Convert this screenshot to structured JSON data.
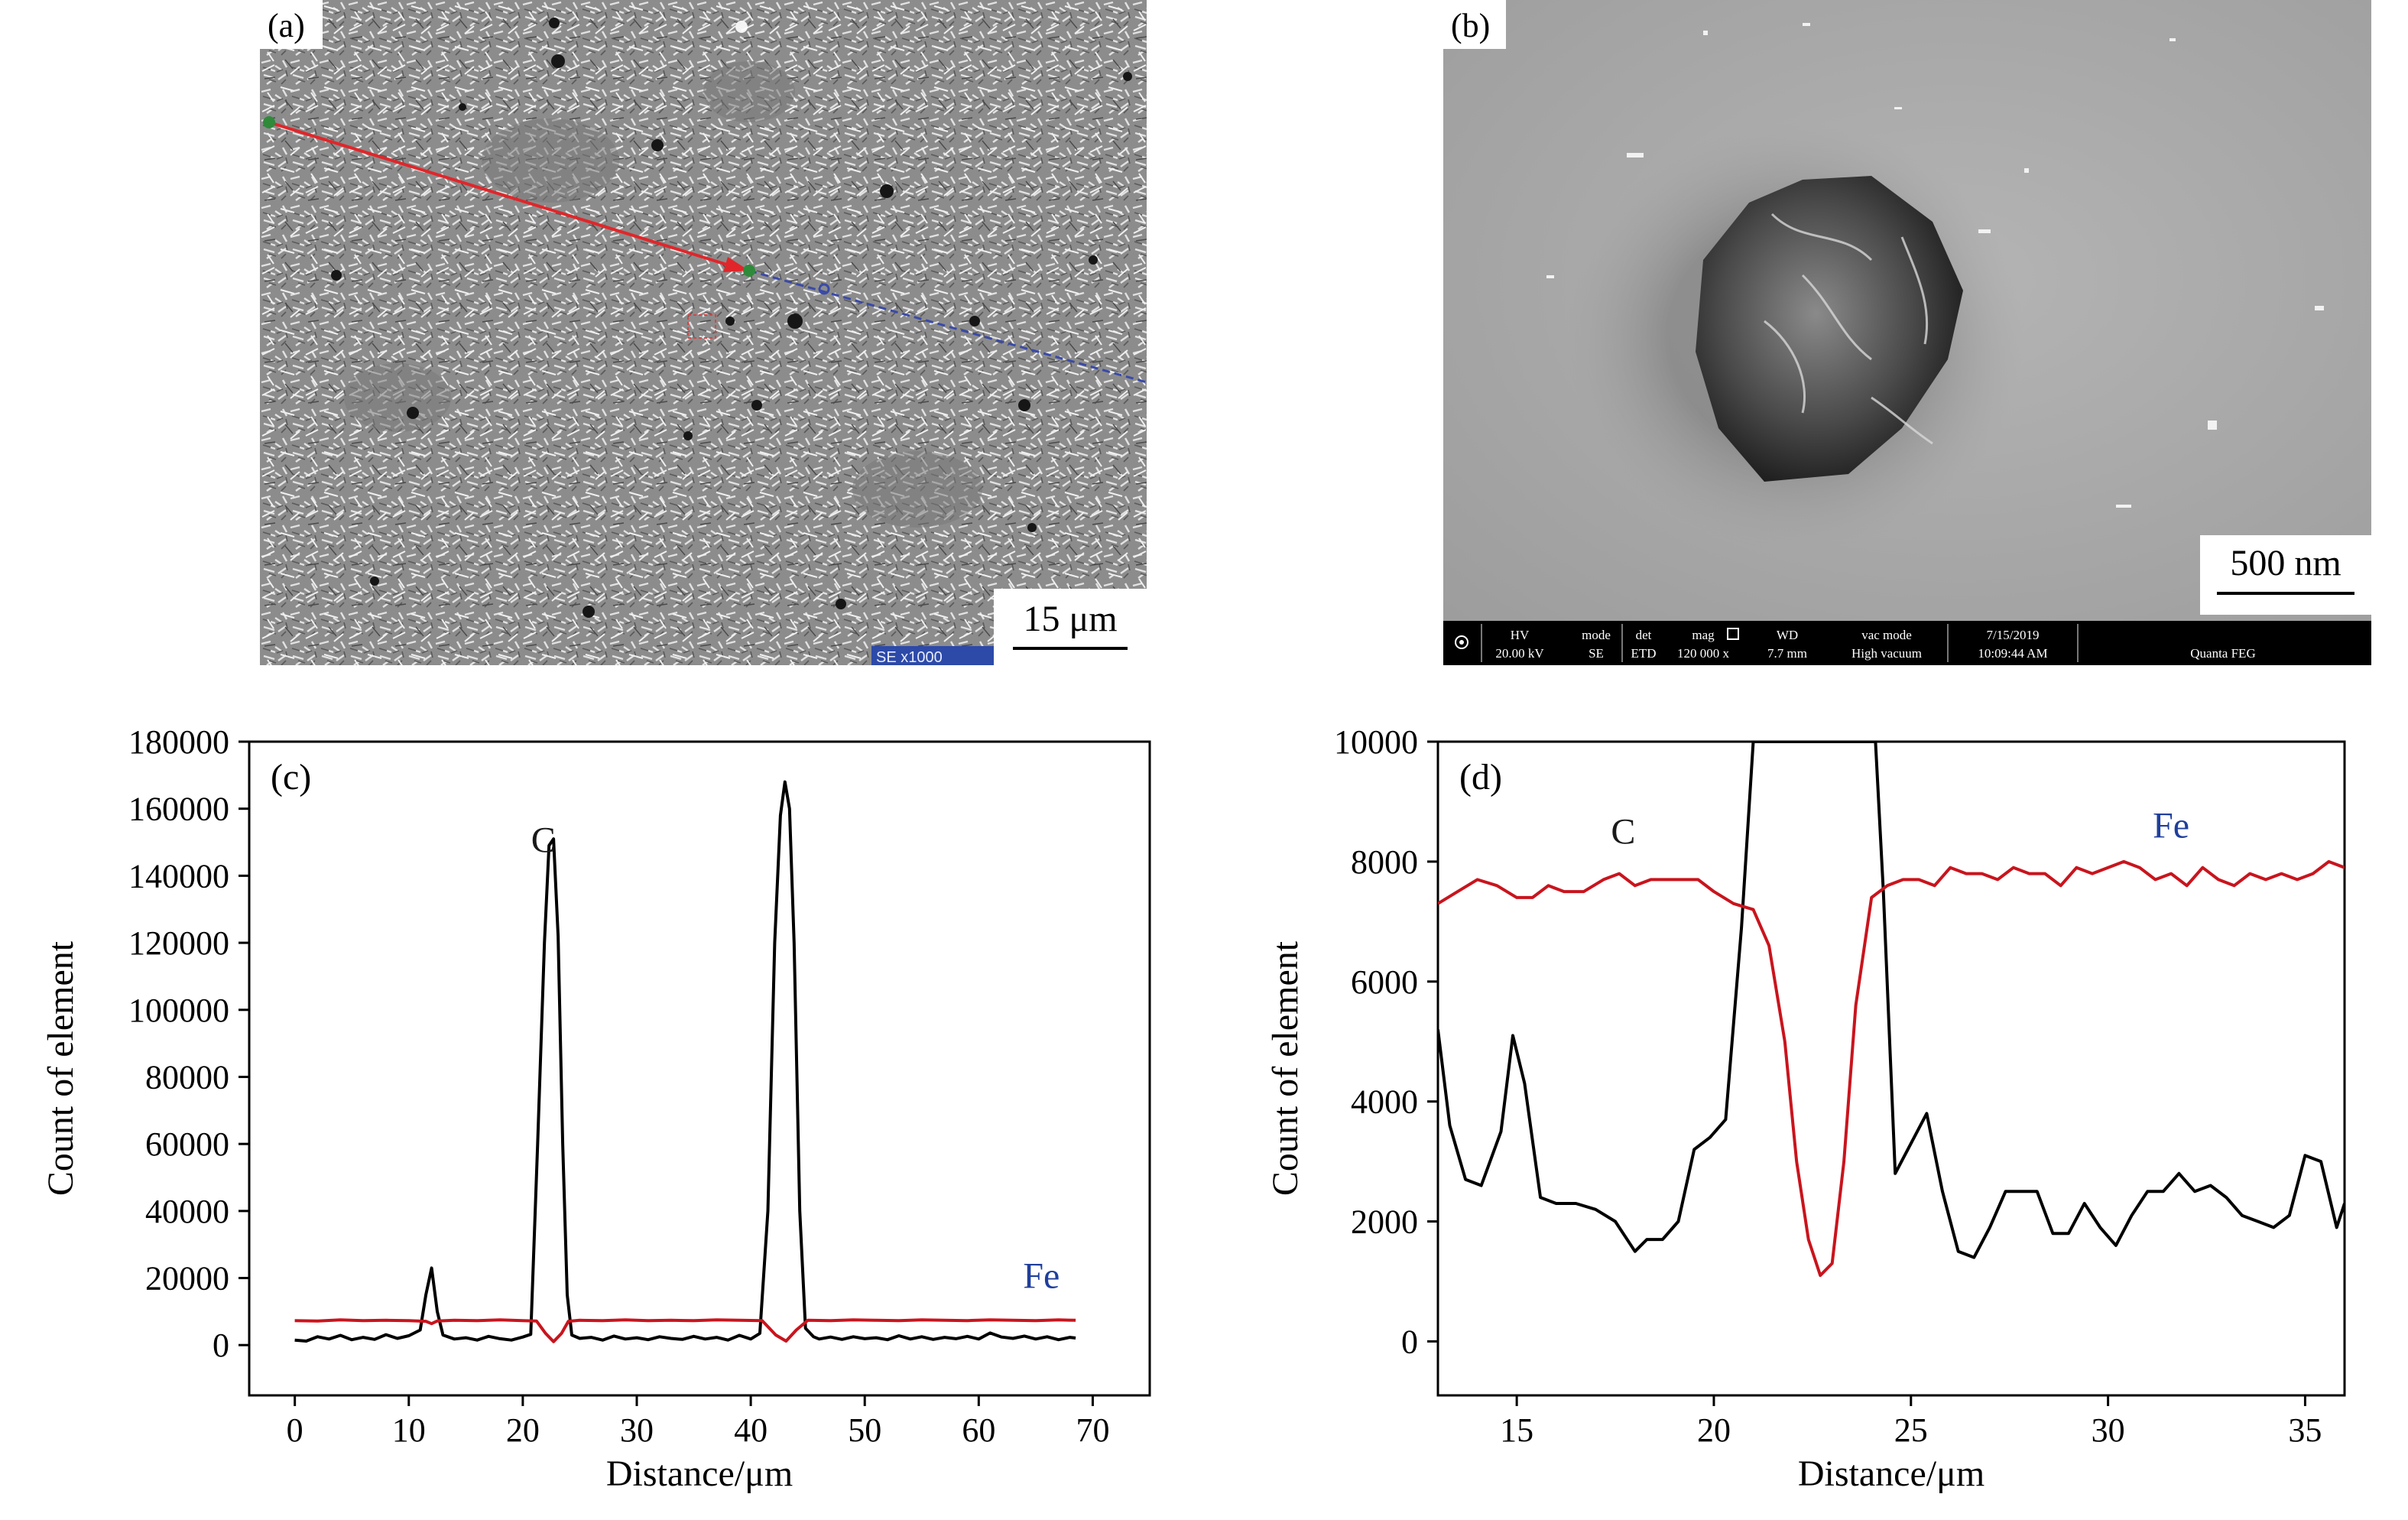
{
  "micrographs": {
    "a": {
      "panel_label": "(a)",
      "scale_bar_label": "15 μm",
      "info_tag": "SE  x1000"
    },
    "b": {
      "panel_label": "(b)",
      "scale_bar_label": "500 nm",
      "info_bar": {
        "hv_label": "HV",
        "hv_value": "20.00 kV",
        "mode_label": "mode",
        "mode_value": "SE",
        "det_label": "det",
        "det_value": "ETD",
        "mag_label": "mag",
        "mag_value": "120 000 x",
        "wd_label": "WD",
        "wd_value": "7.7 mm",
        "vac_label": "vac mode",
        "vac_value": "High vacuum",
        "date": "7/15/2019",
        "time": "10:09:44 AM",
        "instrument": "Quanta FEG"
      }
    }
  },
  "chart_data": [
    {
      "type": "line",
      "panel_label": "(c)",
      "xlabel": "Distance/μm",
      "ylabel": "Count of element",
      "xlim": [
        -4,
        75
      ],
      "ylim": [
        -15000,
        180000
      ],
      "xticks": [
        0,
        10,
        20,
        30,
        40,
        50,
        60,
        70
      ],
      "yticks": [
        0,
        20000,
        40000,
        60000,
        80000,
        100000,
        120000,
        140000,
        160000,
        180000
      ],
      "grid": false,
      "annotations": [
        {
          "text": "C",
          "x": 21.8,
          "y": 147000,
          "color": "#1a1a1a"
        },
        {
          "text": "Fe",
          "x": 65.5,
          "y": 17000,
          "color": "#1f3f9c"
        }
      ],
      "series": [
        {
          "name": "C",
          "color": "#000000",
          "x": [
            0,
            1,
            2,
            3,
            4,
            5,
            6,
            7,
            8,
            9,
            10,
            11,
            11.5,
            12,
            12.5,
            13,
            14,
            15,
            16,
            17,
            18,
            19,
            20,
            20.7,
            21.3,
            21.9,
            22.3,
            22.7,
            23.1,
            23.5,
            23.9,
            24.3,
            25,
            26,
            27,
            28,
            29,
            30,
            31,
            32,
            33,
            34,
            35,
            36,
            37,
            38,
            39,
            40,
            40.8,
            41.5,
            42.1,
            42.6,
            43,
            43.4,
            43.8,
            44.3,
            44.8,
            45.5,
            46,
            47,
            48,
            49,
            50,
            51,
            52,
            53,
            54,
            55,
            56,
            57,
            58,
            59,
            60,
            61,
            62,
            63,
            64,
            65,
            66,
            67,
            68,
            68.5
          ],
          "y": [
            1500,
            1200,
            2500,
            1800,
            2900,
            1600,
            2300,
            1700,
            3100,
            2000,
            2800,
            4500,
            15000,
            23000,
            10000,
            3000,
            1800,
            2200,
            1500,
            2600,
            1900,
            1500,
            2400,
            3200,
            60000,
            120000,
            149000,
            151000,
            122000,
            60000,
            15000,
            3000,
            2000,
            2300,
            1500,
            2700,
            1800,
            2200,
            1600,
            2500,
            2000,
            1700,
            2600,
            1800,
            2300,
            1500,
            2900,
            1800,
            3500,
            40000,
            120000,
            158000,
            168000,
            160000,
            120000,
            40000,
            5000,
            2500,
            1800,
            2400,
            1700,
            2500,
            1900,
            2200,
            1600,
            2800,
            1800,
            2500,
            1700,
            2300,
            1900,
            2600,
            1800,
            3600,
            2400,
            2000,
            2700,
            1800,
            2500,
            1600,
            2300,
            2100
          ]
        },
        {
          "name": "Fe",
          "color": "#c9141d",
          "x": [
            0,
            2,
            4,
            6,
            8,
            10,
            11.5,
            12,
            12.5,
            14,
            16,
            18,
            20,
            21.2,
            22,
            22.7,
            23.4,
            24,
            25,
            27,
            29,
            31,
            33,
            35,
            37,
            39,
            41,
            42.2,
            43.1,
            44,
            45,
            47,
            49,
            51,
            53,
            55,
            57,
            59,
            61,
            63,
            65,
            67,
            68.5
          ],
          "y": [
            7300,
            7200,
            7500,
            7300,
            7400,
            7300,
            7100,
            6400,
            7200,
            7400,
            7300,
            7500,
            7300,
            7200,
            3500,
            1000,
            3500,
            7100,
            7400,
            7300,
            7500,
            7300,
            7400,
            7300,
            7500,
            7400,
            7300,
            3000,
            1200,
            4500,
            7400,
            7300,
            7500,
            7400,
            7300,
            7500,
            7400,
            7300,
            7500,
            7400,
            7300,
            7500,
            7400
          ]
        }
      ]
    },
    {
      "type": "line",
      "panel_label": "(d)",
      "xlabel": "Distance/μm",
      "ylabel": "Count of element",
      "xlim": [
        13,
        36
      ],
      "ylim": [
        -900,
        10000
      ],
      "xticks": [
        15,
        20,
        25,
        30,
        35
      ],
      "yticks": [
        0,
        2000,
        4000,
        6000,
        8000,
        10000
      ],
      "grid": false,
      "annotations": [
        {
          "text": "C",
          "x": 17.7,
          "y": 8300,
          "color": "#1a1a1a"
        },
        {
          "text": "Fe",
          "x": 31.6,
          "y": 8400,
          "color": "#1f3f9c"
        }
      ],
      "series": [
        {
          "name": "C",
          "color": "#000000",
          "x": [
            13,
            13.3,
            13.7,
            14.1,
            14.6,
            14.9,
            15.2,
            15.6,
            16,
            16.5,
            17,
            17.5,
            18,
            18.3,
            18.7,
            19.1,
            19.5,
            19.9,
            20.3,
            20.7,
            21,
            21.2,
            24.1,
            24.3,
            24.6,
            25,
            25.4,
            25.8,
            26.2,
            26.6,
            27,
            27.4,
            27.8,
            28.2,
            28.6,
            29,
            29.4,
            29.8,
            30.2,
            30.6,
            31,
            31.4,
            31.8,
            32.2,
            32.6,
            33,
            33.4,
            33.8,
            34.2,
            34.6,
            35,
            35.4,
            35.8,
            36
          ],
          "y": [
            5200,
            3600,
            2700,
            2600,
            3500,
            5100,
            4300,
            2400,
            2300,
            2300,
            2200,
            2000,
            1500,
            1700,
            1700,
            2000,
            3200,
            3400,
            3700,
            6900,
            10000,
            10000,
            10000,
            7500,
            2800,
            3300,
            3800,
            2500,
            1500,
            1400,
            1900,
            2500,
            2500,
            2500,
            1800,
            1800,
            2300,
            1900,
            1600,
            2100,
            2500,
            2500,
            2800,
            2500,
            2600,
            2400,
            2100,
            2000,
            1900,
            2100,
            3100,
            3000,
            1900,
            2300
          ]
        },
        {
          "name": "Fe",
          "color": "#c9141d",
          "x": [
            13,
            13.5,
            14,
            14.5,
            15,
            15.4,
            15.8,
            16.2,
            16.7,
            17.2,
            17.6,
            18,
            18.4,
            18.8,
            19.2,
            19.6,
            20,
            20.5,
            21,
            21.4,
            21.8,
            22.1,
            22.4,
            22.7,
            23,
            23.3,
            23.6,
            24,
            24.4,
            24.8,
            25.2,
            25.6,
            26,
            26.4,
            26.8,
            27.2,
            27.6,
            28,
            28.4,
            28.8,
            29.2,
            29.6,
            30,
            30.4,
            30.8,
            31.2,
            31.6,
            32,
            32.4,
            32.8,
            33.2,
            33.6,
            34,
            34.4,
            34.8,
            35.2,
            35.6,
            36
          ],
          "y": [
            7300,
            7500,
            7700,
            7600,
            7400,
            7400,
            7600,
            7500,
            7500,
            7700,
            7800,
            7600,
            7700,
            7700,
            7700,
            7700,
            7500,
            7300,
            7200,
            6600,
            5000,
            3000,
            1700,
            1100,
            1300,
            3000,
            5600,
            7400,
            7600,
            7700,
            7700,
            7600,
            7900,
            7800,
            7800,
            7700,
            7900,
            7800,
            7800,
            7600,
            7900,
            7800,
            7900,
            8000,
            7900,
            7700,
            7800,
            7600,
            7900,
            7700,
            7600,
            7800,
            7700,
            7800,
            7700,
            7800,
            8000,
            7900
          ]
        }
      ]
    }
  ]
}
